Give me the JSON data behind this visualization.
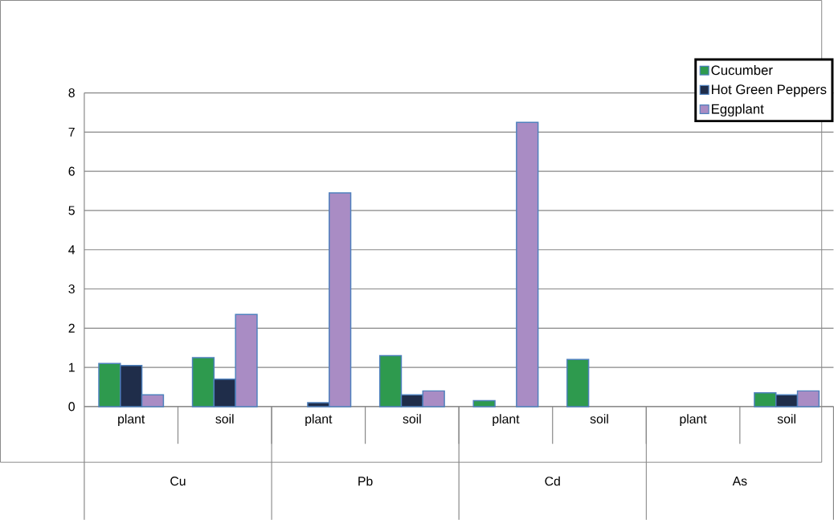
{
  "chart_data": {
    "type": "bar",
    "categories": [
      "plant",
      "soil",
      "plant",
      "soil",
      "plant",
      "soil",
      "plant",
      "soil"
    ],
    "annotations": [
      "Cu",
      "Pb",
      "Cd",
      "As"
    ],
    "series": [
      {
        "name": "Cucumber",
        "color": "#2e9a4e",
        "values": [
          1.1,
          1.25,
          null,
          1.3,
          0.15,
          1.2,
          null,
          0.35
        ]
      },
      {
        "name": "Hot Green Peppers",
        "color": "#1f2d4a",
        "values": [
          1.05,
          0.7,
          0.1,
          0.3,
          null,
          null,
          null,
          0.3
        ]
      },
      {
        "name": "Eggplant",
        "color": "#a98cc4",
        "values": [
          0.3,
          2.35,
          5.45,
          0.4,
          7.25,
          null,
          null,
          0.4
        ]
      }
    ],
    "ylim": [
      0,
      8
    ],
    "yticks": [
      0,
      1,
      2,
      3,
      4,
      5,
      6,
      7,
      8
    ],
    "grid": "y",
    "legend": "top right"
  }
}
